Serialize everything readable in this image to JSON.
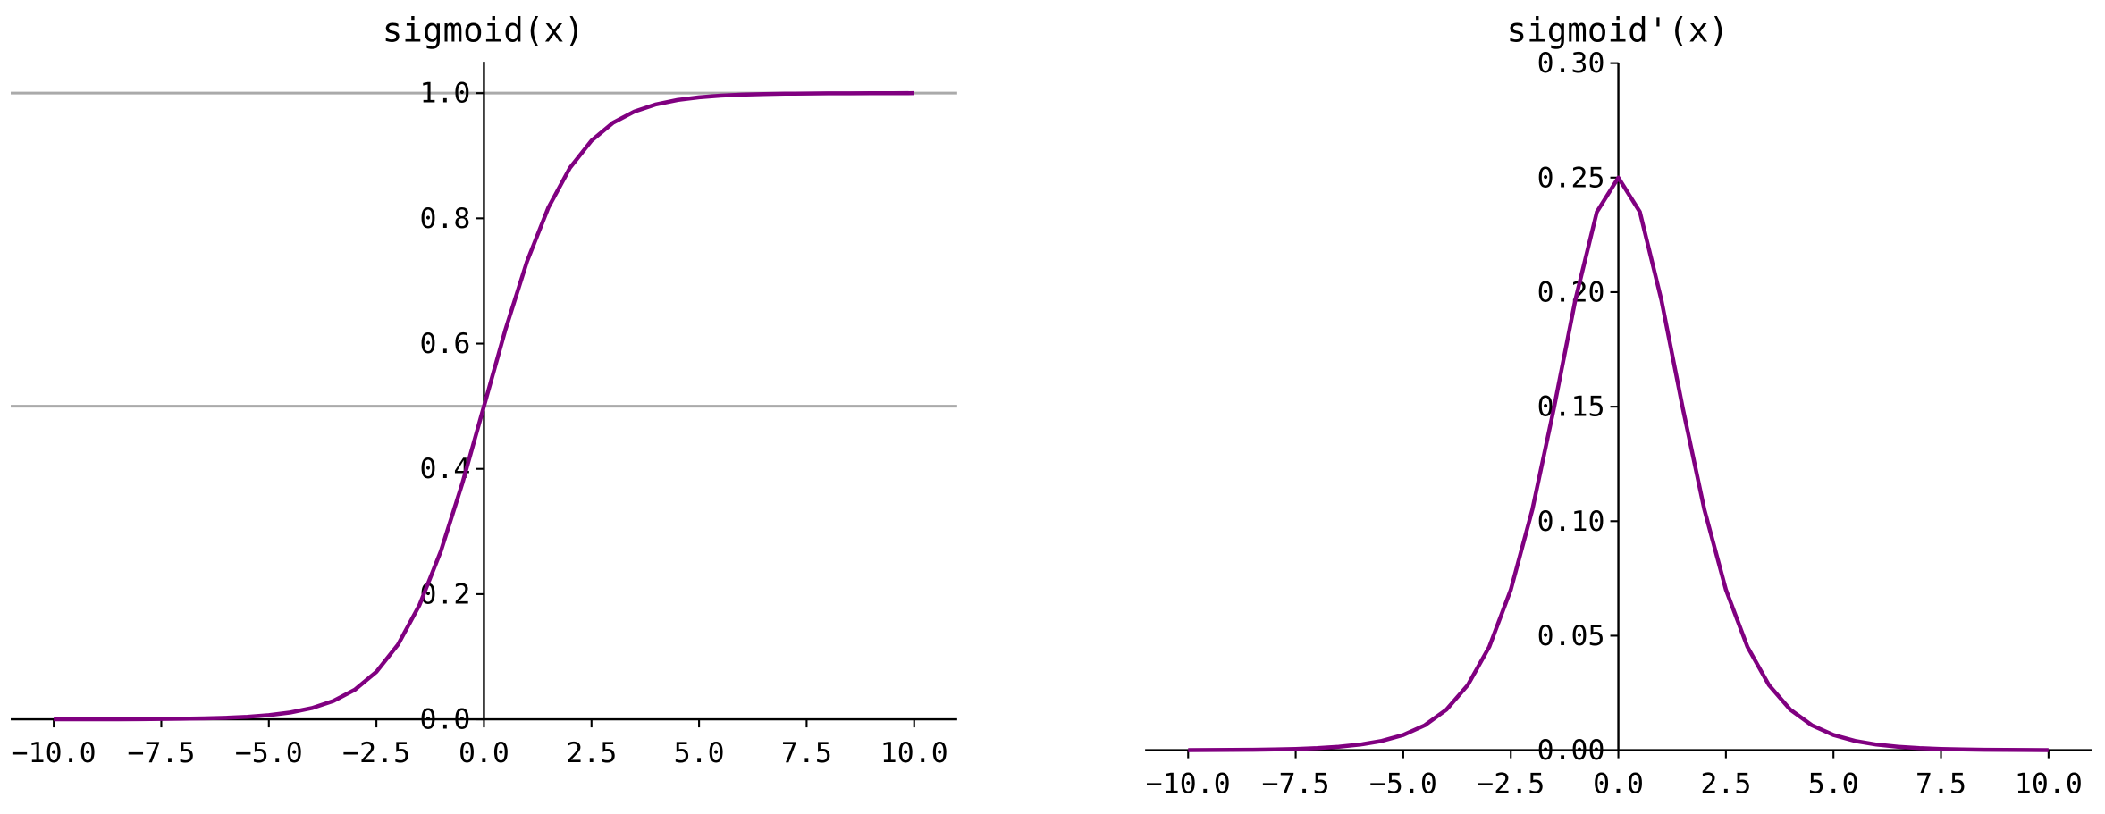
{
  "chart_data": [
    {
      "type": "line",
      "title": "sigmoid(x)",
      "x": [
        -10,
        -9.5,
        -9,
        -8.5,
        -8,
        -7.5,
        -7,
        -6.5,
        -6,
        -5.5,
        -5,
        -4.5,
        -4,
        -3.5,
        -3,
        -2.5,
        -2,
        -1.5,
        -1,
        -0.5,
        0,
        0.5,
        1,
        1.5,
        2,
        2.5,
        3,
        3.5,
        4,
        4.5,
        5,
        5.5,
        6,
        6.5,
        7,
        7.5,
        8,
        8.5,
        9,
        9.5,
        10
      ],
      "series": [
        {
          "name": "sigmoid",
          "color": "#800080",
          "values": [
            4.54e-05,
            7.49e-05,
            0.000123,
            0.000203,
            0.000335,
            0.000553,
            0.000911,
            0.001501,
            0.002473,
            0.00407,
            0.006693,
            0.01099,
            0.01799,
            0.02931,
            0.04743,
            0.07586,
            0.1192,
            0.1824,
            0.2689,
            0.3775,
            0.5,
            0.6225,
            0.7311,
            0.8176,
            0.8808,
            0.9241,
            0.9526,
            0.9707,
            0.982,
            0.989,
            0.9933,
            0.9959,
            0.9975,
            0.9985,
            0.9991,
            0.9994,
            0.9997,
            0.9998,
            0.9999,
            0.9999,
            1.0
          ]
        }
      ],
      "hlines": [
        0.5,
        1.0
      ],
      "hline_color": "#aaaaaa",
      "xlim": [
        -11,
        11
      ],
      "ylim": [
        0,
        1.05
      ],
      "xticks": [
        {
          "value": -10,
          "label": "−10.0"
        },
        {
          "value": -7.5,
          "label": "−7.5"
        },
        {
          "value": -5,
          "label": "−5.0"
        },
        {
          "value": -2.5,
          "label": "−2.5"
        },
        {
          "value": 0,
          "label": "0.0"
        },
        2.5,
        {
          "value": 5,
          "label": "5.0"
        },
        7.5,
        {
          "value": 10,
          "label": "10.0"
        }
      ],
      "yticks": [
        {
          "value": 0,
          "label": "0.0"
        },
        0.2,
        0.4,
        0.6,
        0.8,
        {
          "value": 1,
          "label": "1.0"
        }
      ]
    },
    {
      "type": "line",
      "title": "sigmoid'(x)",
      "x": [
        -10,
        -9.5,
        -9,
        -8.5,
        -8,
        -7.5,
        -7,
        -6.5,
        -6,
        -5.5,
        -5,
        -4.5,
        -4,
        -3.5,
        -3,
        -2.5,
        -2,
        -1.5,
        -1,
        -0.5,
        0,
        0.5,
        1,
        1.5,
        2,
        2.5,
        3,
        3.5,
        4,
        4.5,
        5,
        5.5,
        6,
        6.5,
        7,
        7.5,
        8,
        8.5,
        9,
        9.5,
        10
      ],
      "series": [
        {
          "name": "sigmoid'",
          "color": "#800080",
          "values": [
            4.54e-05,
            7.49e-05,
            0.000123,
            0.000203,
            0.000335,
            0.000553,
            0.00091,
            0.001499,
            0.002467,
            0.004054,
            0.006648,
            0.01087,
            0.01766,
            0.02845,
            0.04518,
            0.0701,
            0.105,
            0.1491,
            0.1966,
            0.235,
            0.25,
            0.235,
            0.1966,
            0.1491,
            0.105,
            0.0701,
            0.04518,
            0.02845,
            0.01766,
            0.01087,
            0.006648,
            0.004054,
            0.002467,
            0.001499,
            0.00091,
            0.000553,
            0.000335,
            0.000203,
            0.000123,
            7.49e-05,
            4.54e-05
          ]
        }
      ],
      "xlim": [
        -11,
        11
      ],
      "ylim": [
        0,
        0.3
      ],
      "xticks": [
        {
          "value": -10,
          "label": "−10.0"
        },
        {
          "value": -7.5,
          "label": "−7.5"
        },
        {
          "value": -5,
          "label": "−5.0"
        },
        {
          "value": -2.5,
          "label": "−2.5"
        },
        {
          "value": 0,
          "label": "0.0"
        },
        2.5,
        {
          "value": 5,
          "label": "5.0"
        },
        7.5,
        {
          "value": 10,
          "label": "10.0"
        }
      ],
      "yticks": [
        {
          "value": 0,
          "label": "0.00"
        },
        0.05,
        {
          "value": 0.1,
          "label": "0.10"
        },
        0.15,
        {
          "value": 0.2,
          "label": "0.20"
        },
        0.25,
        {
          "value": 0.3,
          "label": "0.30"
        }
      ]
    }
  ]
}
